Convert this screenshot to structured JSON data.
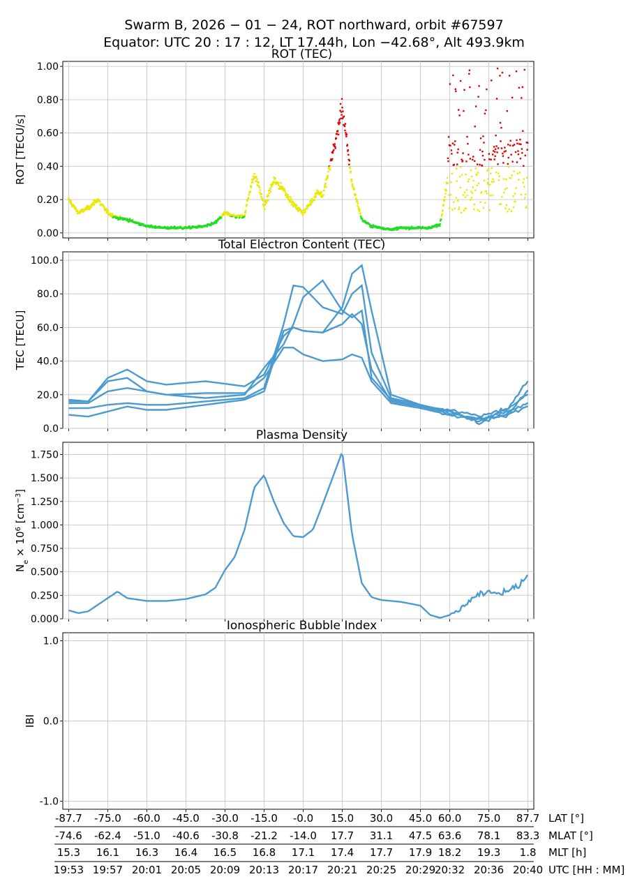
{
  "figure": {
    "title_line1": "Swarm B,  2026 − 01 − 24,  ROT northward,  orbit #67597",
    "title_line2": "Equator:  UTC 20 : 17 : 12,  LT 17.44h,  Lon  −42.68°,  Alt 493.9km"
  },
  "chart_data": [
    {
      "type": "scatter",
      "title": "ROT (TEC)",
      "ylabel": "ROT [TECU/s]",
      "ylim": [
        -0.03,
        1.03
      ],
      "yticks": [
        "0.00",
        "0.20",
        "0.40",
        "0.60",
        "0.80",
        "1.00"
      ],
      "yticks_values": [
        0,
        0.2,
        0.4,
        0.6,
        0.8,
        1.0
      ],
      "grid": true,
      "colors": {
        "low": "#22dd22",
        "mid": "#e8e800",
        "high": "#dd0000"
      },
      "thresholds": {
        "low_max": 0.1,
        "mid_max": 0.4
      },
      "envelope": {
        "x_minutes_since_1953": [
          0,
          1,
          2,
          3,
          4,
          5,
          6,
          8,
          10,
          12,
          14,
          15,
          16,
          17,
          18,
          18.5,
          19,
          19.5,
          20,
          21,
          22,
          23,
          24,
          25,
          25.5,
          26,
          27,
          28,
          29,
          30,
          31,
          32,
          33,
          34,
          35,
          36,
          37,
          38,
          39,
          40,
          41,
          42,
          43,
          44,
          45,
          46,
          47
        ],
        "y": [
          0.2,
          0.12,
          0.15,
          0.2,
          0.12,
          0.09,
          0.08,
          0.04,
          0.03,
          0.03,
          0.04,
          0.06,
          0.12,
          0.1,
          0.1,
          0.25,
          0.35,
          0.28,
          0.15,
          0.32,
          0.26,
          0.17,
          0.12,
          0.2,
          0.25,
          0.22,
          0.47,
          0.75,
          0.3,
          0.08,
          0.04,
          0.03,
          0.02,
          0.03,
          0.03,
          0.03,
          0.03,
          0.05,
          0.4,
          0.45,
          0.5,
          0.55,
          0.5,
          0.55,
          0.45,
          0.5,
          0.6
        ]
      }
    },
    {
      "type": "line",
      "title": "Total Electron Content (TEC)",
      "ylabel": "TEC [TECU]",
      "ylim": [
        0,
        105
      ],
      "yticks": [
        "0.0",
        "20.0",
        "40.0",
        "60.0",
        "80.0",
        "100.0"
      ],
      "yticks_values": [
        0,
        20,
        40,
        60,
        80,
        100
      ],
      "grid": true,
      "color": "#4b9ad0",
      "series_x_minutes_since_1953": [
        0,
        2,
        4,
        6,
        8,
        10,
        14,
        18,
        20,
        22,
        23,
        24,
        26,
        28,
        29,
        30,
        31,
        33,
        36,
        39,
        42,
        45,
        47
      ],
      "series": [
        {
          "values": [
            17,
            16,
            28,
            30,
            22,
            20,
            21,
            21,
            30,
            48,
            48,
            44,
            40,
            41,
            44,
            42,
            28,
            15,
            12,
            8,
            6,
            8,
            13
          ]
        },
        {
          "values": [
            16,
            16,
            30,
            35,
            28,
            26,
            28,
            25,
            32,
            55,
            60,
            58,
            57,
            62,
            68,
            62,
            35,
            16,
            13,
            9,
            5,
            10,
            15
          ]
        },
        {
          "values": [
            12,
            12,
            14,
            15,
            14,
            14,
            16,
            18,
            24,
            62,
            85,
            84,
            72,
            68,
            80,
            85,
            45,
            18,
            14,
            10,
            4,
            12,
            20
          ]
        },
        {
          "values": [
            8,
            7,
            10,
            13,
            11,
            11,
            14,
            17,
            22,
            58,
            60,
            58,
            57,
            72,
            92,
            97,
            70,
            20,
            14,
            10,
            3,
            9,
            22
          ]
        },
        {
          "values": [
            15,
            15,
            22,
            24,
            22,
            20,
            18,
            20,
            36,
            50,
            62,
            78,
            88,
            70,
            66,
            70,
            30,
            17,
            13,
            11,
            7,
            12,
            28
          ]
        }
      ]
    },
    {
      "type": "line",
      "title": "Plasma Density",
      "ylabel": "N_e × 10^6 [cm^-3]",
      "ylim": [
        0,
        1.88
      ],
      "yticks": [
        "0.000",
        "0.250",
        "0.500",
        "0.750",
        "1.000",
        "1.250",
        "1.500",
        "1.750"
      ],
      "yticks_values": [
        0,
        0.25,
        0.5,
        0.75,
        1.0,
        1.25,
        1.5,
        1.75
      ],
      "grid": true,
      "color": "#4b9ad0",
      "x_minutes_since_1953": [
        0,
        1,
        2,
        3,
        4,
        5,
        6,
        8,
        10,
        12,
        14,
        15,
        16,
        17,
        18,
        19,
        20,
        21,
        22,
        23,
        24,
        25,
        26,
        27,
        28,
        29,
        30,
        31,
        32,
        34,
        36,
        37,
        38,
        39,
        40,
        41,
        42,
        43,
        44,
        45,
        46,
        47
      ],
      "values": [
        0.09,
        0.06,
        0.08,
        0.15,
        0.22,
        0.29,
        0.22,
        0.19,
        0.19,
        0.21,
        0.26,
        0.33,
        0.52,
        0.66,
        0.95,
        1.4,
        1.53,
        1.25,
        1.02,
        0.88,
        0.87,
        0.95,
        1.22,
        1.5,
        1.78,
        0.9,
        0.38,
        0.23,
        0.2,
        0.18,
        0.14,
        0.04,
        0.01,
        0.04,
        0.1,
        0.18,
        0.26,
        0.28,
        0.27,
        0.3,
        0.35,
        0.47
      ]
    },
    {
      "type": "scatter",
      "title": "Ionospheric Bubble Index",
      "ylabel": "IBI",
      "ylim": [
        -1.1,
        1.1
      ],
      "yticks": [
        "-1.0",
        "0.0",
        "1.0"
      ],
      "yticks_values": [
        -1,
        0,
        1
      ],
      "grid": true,
      "values": []
    }
  ],
  "x_axis": {
    "tick_minutes_since_1953": [
      0,
      4,
      8,
      12,
      16,
      20,
      24,
      28,
      32,
      36,
      39,
      43,
      47
    ],
    "rows": [
      {
        "label": "LAT [°]",
        "values": [
          "-87.7",
          "-75.0",
          "-60.0",
          "-45.0",
          "-30.0",
          "-15.0",
          "-0.0",
          "15.0",
          "30.0",
          "45.0",
          "60.0",
          "75.0",
          "87.7"
        ]
      },
      {
        "label": "MLAT [°]",
        "values": [
          "-74.6",
          "-62.4",
          "-51.0",
          "-40.6",
          "-30.8",
          "-21.2",
          "-14.0",
          "17.7",
          "31.1",
          "47.5",
          "63.6",
          "78.1",
          "83.3"
        ]
      },
      {
        "label": "MLT [h]",
        "values": [
          "15.3",
          "16.1",
          "16.3",
          "16.4",
          "16.5",
          "16.8",
          "17.1",
          "17.4",
          "17.7",
          "17.9",
          "18.2",
          "19.3",
          "1.8"
        ]
      },
      {
        "label": "UTC [HH : MM]",
        "values": [
          "19:53",
          "19:57",
          "20:01",
          "20:05",
          "20:09",
          "20:13",
          "20:17",
          "20:21",
          "20:25",
          "20:29",
          "20:32",
          "20:36",
          "20:40"
        ]
      }
    ]
  }
}
